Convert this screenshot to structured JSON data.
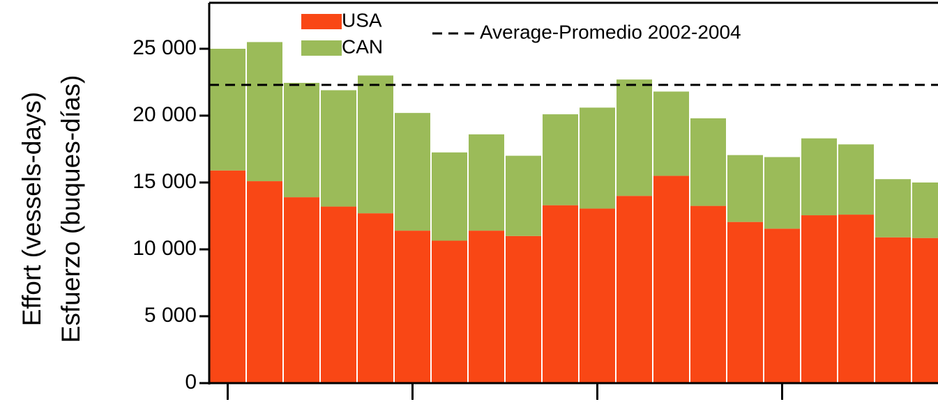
{
  "chart_data": {
    "type": "stacked_bar",
    "y_label_lines": [
      "Effort (vessels-days)",
      "Esfuerzo (buques-días)"
    ],
    "categories": [
      null,
      null,
      null,
      null,
      null,
      null,
      null,
      null,
      null,
      null,
      null,
      null,
      null,
      null,
      null,
      null,
      null,
      null,
      null,
      null
    ],
    "series": [
      {
        "name": "USA",
        "color": "#f94715",
        "values": [
          15900,
          15100,
          13900,
          13200,
          12700,
          11400,
          10650,
          11400,
          11000,
          13300,
          13050,
          14000,
          15500,
          13250,
          12050,
          11550,
          12550,
          12600,
          10900,
          10850
        ]
      },
      {
        "name": "CAN",
        "color": "#9bbb59",
        "values": [
          9100,
          10400,
          8550,
          8700,
          10300,
          8800,
          6600,
          7200,
          6000,
          6800,
          7550,
          8700,
          6300,
          6550,
          5000,
          5350,
          5750,
          5250,
          4350,
          4150
        ]
      }
    ],
    "reference_line": {
      "label": "Average-Promedio 2002-2004",
      "value": 22300,
      "color": "#000000",
      "style": "dashed"
    },
    "ylim": [
      0,
      25000
    ],
    "yticks": [
      0,
      {
        "value": 5000,
        "label": "5 000"
      },
      {
        "value": 10000,
        "label": "10 000"
      },
      {
        "value": 15000,
        "label": "15 000"
      },
      {
        "value": 20000,
        "label": "20 000"
      },
      {
        "value": 25000,
        "label": "25 000"
      }
    ]
  }
}
